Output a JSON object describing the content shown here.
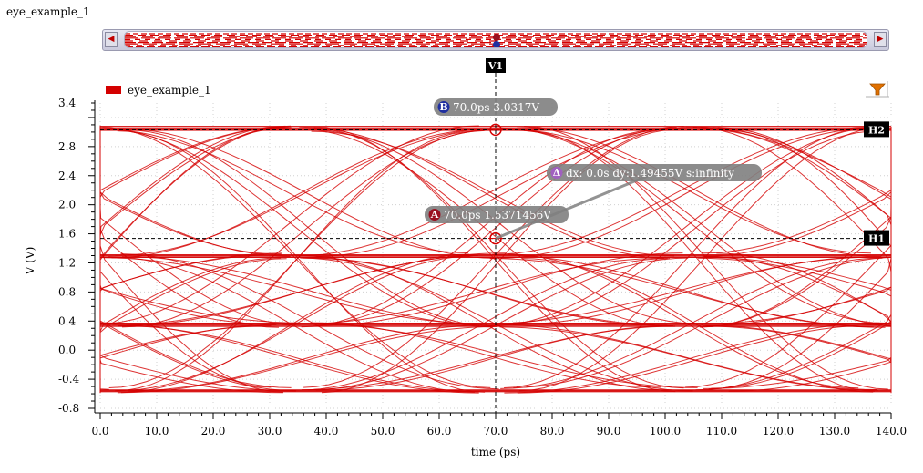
{
  "window": {
    "title": "eye_example_1"
  },
  "colors": {
    "trace": "#d40000",
    "marker_bg": "#000000",
    "bubble_bg": "#808080",
    "badge_a": "#9a1020",
    "badge_b": "#2030a0",
    "badge_delta": "#a060c0"
  },
  "toolbar": {
    "filter_icon": "filter-icon"
  },
  "markers": {
    "vertical": {
      "label": "V1",
      "x": 70.0
    },
    "horizontal": [
      {
        "label": "H2",
        "y": 3.0317
      },
      {
        "label": "H1",
        "y": 1.5371456
      }
    ],
    "point_a": {
      "badge": "A",
      "text": "70.0ps 1.5371456V",
      "x": 70.0,
      "y": 1.5371456
    },
    "point_b": {
      "badge": "B",
      "text": "70.0ps 3.0317V",
      "x": 70.0,
      "y": 3.0317
    },
    "delta": {
      "badge": "Δ",
      "text": "dx: 0.0s dy:1.49455V s:infinity"
    }
  },
  "chart_data": {
    "type": "line",
    "title": "",
    "xlabel": "time (ps)",
    "ylabel": "V (V)",
    "xlim": [
      0,
      140
    ],
    "ylim": [
      -0.8,
      3.4
    ],
    "x_ticks": [
      "0.0",
      "10.0",
      "20.0",
      "30.0",
      "40.0",
      "50.0",
      "60.0",
      "70.0",
      "80.0",
      "90.0",
      "100.0",
      "110.0",
      "120.0",
      "130.0",
      "140.0"
    ],
    "y_ticks": [
      "3.4",
      "2.8",
      "2.4",
      "2.0",
      "1.6",
      "1.2",
      "0.8",
      "0.4",
      "0.0",
      "-0.4",
      "-0.8"
    ],
    "legend": {
      "position": "top-left",
      "entries": [
        "eye_example_1"
      ]
    },
    "grid": true,
    "series": [
      {
        "name": "eye_example_1",
        "color": "#d40000",
        "unit_interval_ps": 70,
        "levels_V": [
          -0.55,
          0.35,
          1.3,
          3.05
        ]
      }
    ]
  }
}
